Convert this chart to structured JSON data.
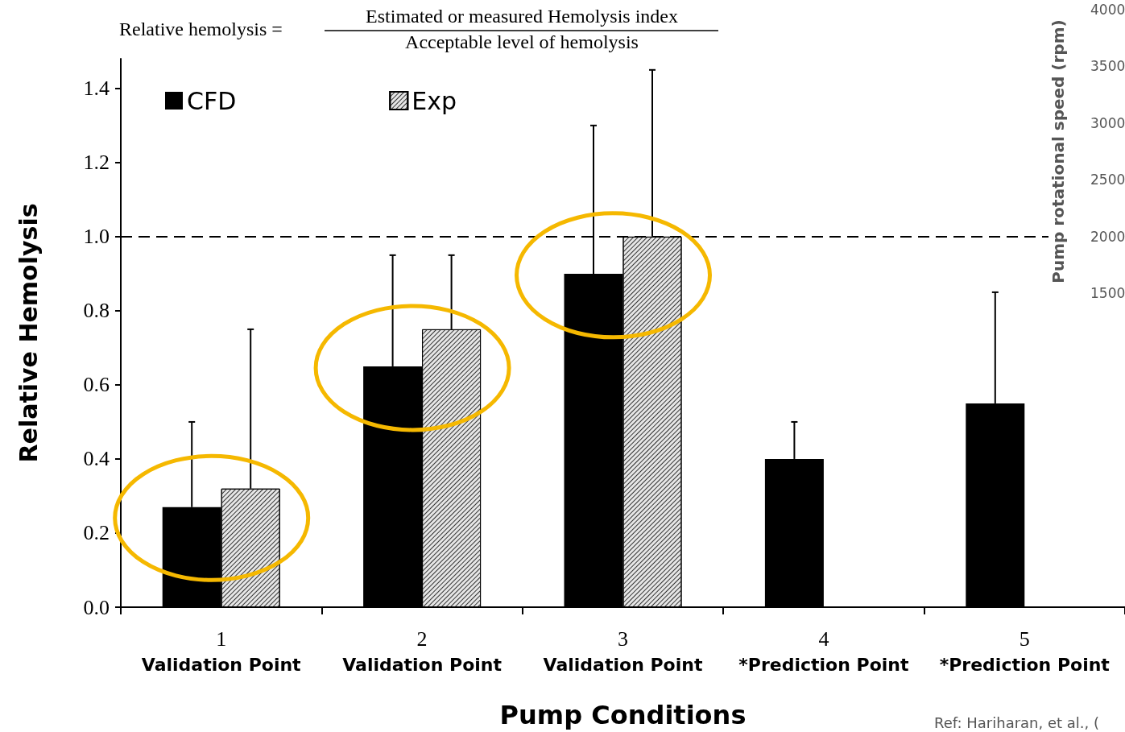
{
  "chart_data": {
    "type": "bar",
    "annotations": [
      "Relative hemolysis =",
      "Estimated or measured Hemolysis index",
      "Acceptable level of hemolysis",
      "Ref: Hariharan, et al., ("
    ],
    "xlabel": "Pump Conditions",
    "ylabel": "Relative Hemolysis",
    "y2label": "Pump rotational speed (rpm)",
    "categories": [
      "1\nValidation Point",
      "2\nValidation Point",
      "3\nValidation Point",
      "4\n*Prediction Point",
      "5\n*Prediction Point"
    ],
    "series": [
      {
        "name": "CFD",
        "color": "#000000",
        "values": [
          0.27,
          0.65,
          0.9,
          0.4,
          0.55
        ],
        "errors": [
          [
            0.27,
            0.5
          ],
          [
            0.65,
            0.95
          ],
          [
            0.9,
            1.3
          ],
          [
            0.4,
            0.5
          ],
          [
            0.55,
            0.85
          ]
        ]
      },
      {
        "name": "Exp",
        "color": "#e6e6e6",
        "values": [
          0.32,
          0.75,
          1.0,
          null,
          null
        ],
        "errors": [
          [
            0.32,
            0.75
          ],
          [
            0.75,
            0.95
          ],
          [
            1.0,
            1.45
          ],
          null,
          null
        ]
      }
    ],
    "ylim": [
      0,
      1.48
    ],
    "yticks": [
      {
        "value": 0,
        "label": "0.0"
      },
      {
        "value": 0.2,
        "label": "0.2"
      },
      {
        "value": 0.4,
        "label": "0.4"
      },
      {
        "value": 0.6,
        "label": "0.6"
      },
      {
        "value": 0.8,
        "label": "0.8"
      },
      {
        "value": 1,
        "label": "1.0"
      },
      {
        "value": 1.2,
        "label": "1.2"
      },
      {
        "value": 1.4,
        "label": "1.4"
      }
    ],
    "y2lim": [
      1500,
      4000
    ],
    "y2ticks": [
      1500,
      2000,
      2500,
      3000,
      3500,
      4000
    ],
    "ref_lines": [
      {
        "axis": "y",
        "value": 1,
        "line_style": "dashed",
        "color": "#000000"
      }
    ],
    "legend": "top left",
    "grid": false
  }
}
